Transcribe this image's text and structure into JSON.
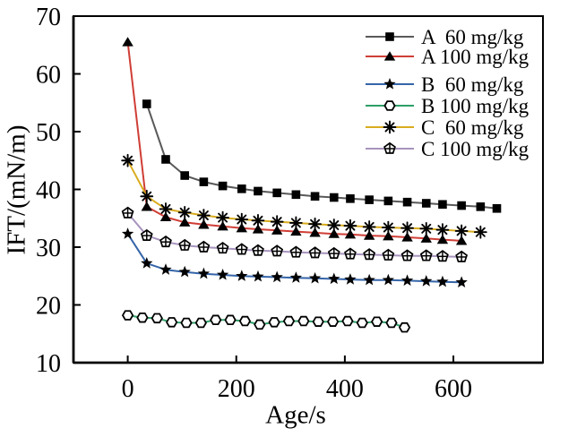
{
  "figure": {
    "background": "#ffffff",
    "axis_color": "#000000",
    "text_color": "#000000",
    "marker_color": "#000000"
  },
  "chart_data": {
    "type": "line",
    "title": "",
    "xlabel": "Age/s",
    "ylabel": "IFT/(mN/m)",
    "xlim": [
      -100,
      765
    ],
    "ylim": [
      10,
      70
    ],
    "x_ticks": [
      0,
      200,
      400,
      600
    ],
    "y_ticks": [
      10,
      20,
      30,
      40,
      50,
      60,
      70
    ],
    "grid": false,
    "legend_position": "top-right-inside",
    "series": [
      {
        "name": "A  60 mg/kg",
        "marker": "square",
        "color": "#595959",
        "x": [
          35,
          70,
          105,
          140,
          175,
          210,
          240,
          275,
          310,
          345,
          380,
          410,
          445,
          480,
          515,
          550,
          580,
          615,
          650,
          680
        ],
        "y": [
          54.8,
          45.2,
          42.4,
          41.3,
          40.6,
          40.1,
          39.7,
          39.4,
          39.1,
          38.8,
          38.6,
          38.4,
          38.2,
          38.0,
          37.8,
          37.6,
          37.4,
          37.2,
          37.0,
          36.7
        ]
      },
      {
        "name": "A 100 mg/kg",
        "marker": "triangle",
        "color": "#cf3e36",
        "x": [
          0,
          35,
          70,
          105,
          140,
          175,
          210,
          240,
          275,
          310,
          345,
          380,
          410,
          445,
          480,
          515,
          550,
          580,
          615
        ],
        "y": [
          65.5,
          37.0,
          35.2,
          34.3,
          33.9,
          33.6,
          33.3,
          33.1,
          32.9,
          32.7,
          32.5,
          32.3,
          32.2,
          32.0,
          31.9,
          31.7,
          31.5,
          31.3,
          31.1
        ]
      },
      {
        "name": "B  60 mg/kg",
        "marker": "star",
        "color": "#3565a8",
        "x": [
          0,
          35,
          70,
          105,
          140,
          175,
          210,
          240,
          275,
          310,
          345,
          380,
          410,
          445,
          480,
          515,
          550,
          580,
          615
        ],
        "y": [
          32.3,
          27.2,
          26.1,
          25.7,
          25.4,
          25.2,
          25.0,
          24.9,
          24.8,
          24.7,
          24.6,
          24.5,
          24.4,
          24.3,
          24.3,
          24.2,
          24.1,
          24.0,
          23.9
        ]
      },
      {
        "name": "B 100 mg/kg",
        "marker": "hexagon-open",
        "color": "#2e9e67",
        "x": [
          0,
          27,
          54,
          81,
          108,
          135,
          162,
          189,
          216,
          243,
          270,
          297,
          324,
          351,
          378,
          405,
          432,
          459,
          486,
          510
        ],
        "y": [
          18.2,
          17.8,
          17.7,
          17.0,
          16.9,
          16.9,
          17.4,
          17.4,
          17.2,
          16.6,
          17.0,
          17.2,
          17.2,
          17.1,
          17.1,
          17.2,
          16.9,
          17.1,
          16.9,
          16.1
        ]
      },
      {
        "name": "C  60 mg/kg",
        "marker": "asterisk",
        "color": "#d9ac1e",
        "x": [
          0,
          35,
          70,
          105,
          140,
          175,
          210,
          240,
          275,
          310,
          345,
          380,
          410,
          445,
          480,
          515,
          550,
          580,
          615,
          650
        ],
        "y": [
          45.0,
          38.8,
          36.6,
          36.0,
          35.5,
          35.1,
          34.8,
          34.6,
          34.4,
          34.2,
          34.0,
          33.8,
          33.7,
          33.5,
          33.4,
          33.3,
          33.2,
          33.0,
          32.8,
          32.6
        ]
      },
      {
        "name": "C 100 mg/kg",
        "marker": "pentagon-cross",
        "color": "#a793bd",
        "x": [
          0,
          35,
          70,
          105,
          140,
          175,
          210,
          240,
          275,
          310,
          345,
          380,
          410,
          445,
          480,
          515,
          550,
          580,
          615
        ],
        "y": [
          35.9,
          32.0,
          30.9,
          30.3,
          30.0,
          29.8,
          29.6,
          29.4,
          29.3,
          29.1,
          29.0,
          28.9,
          28.8,
          28.7,
          28.6,
          28.5,
          28.5,
          28.4,
          28.3
        ]
      }
    ]
  }
}
